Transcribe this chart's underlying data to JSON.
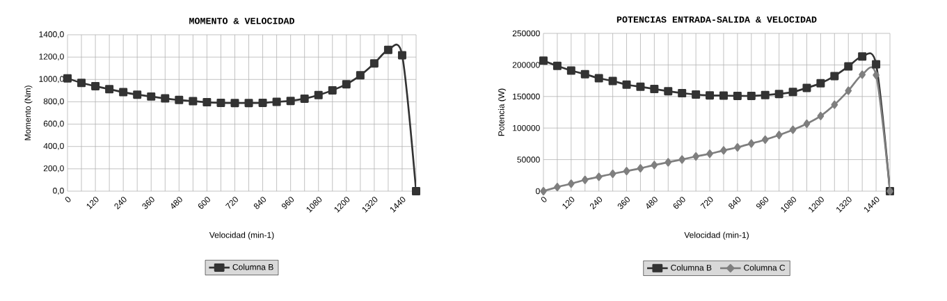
{
  "chart_data": [
    {
      "type": "line",
      "title": "MOMENTO & VELOCIDAD",
      "xlabel": "Velocidad (min-1)",
      "ylabel": "Momento (Nm)",
      "x": [
        0,
        60,
        120,
        180,
        240,
        300,
        360,
        420,
        480,
        540,
        600,
        660,
        720,
        780,
        840,
        900,
        960,
        1020,
        1080,
        1140,
        1200,
        1260,
        1320,
        1380,
        1440,
        1500
      ],
      "series": [
        {
          "name": "Columna B",
          "color": "#333333",
          "marker": "square",
          "values": [
            1010,
            969,
            940,
            913,
            886,
            864,
            847,
            830,
            816,
            806,
            796,
            791,
            789,
            789,
            791,
            799,
            808,
            828,
            860,
            903,
            957,
            1037,
            1144,
            1264,
            1217,
            0
          ]
        }
      ],
      "xlim": [
        0,
        1500
      ],
      "xticks": [
        0,
        {
          "value": 60,
          "label": null
        },
        120,
        {
          "value": 180,
          "label": null
        },
        240,
        {
          "value": 300,
          "label": null
        },
        360,
        {
          "value": 420,
          "label": null
        },
        480,
        {
          "value": 540,
          "label": null
        },
        600,
        {
          "value": 660,
          "label": null
        },
        720,
        {
          "value": 780,
          "label": null
        },
        840,
        {
          "value": 900,
          "label": null
        },
        960,
        {
          "value": 1020,
          "label": null
        },
        1080,
        {
          "value": 1140,
          "label": null
        },
        1200,
        {
          "value": 1260,
          "label": null
        },
        1320,
        {
          "value": 1380,
          "label": null
        },
        1440,
        {
          "value": 1500,
          "label": null
        }
      ],
      "ylim": [
        0,
        1400
      ],
      "yticks": [
        {
          "value": 0,
          "label": "0,0"
        },
        {
          "value": 200,
          "label": "200,0"
        },
        {
          "value": 400,
          "label": "400,0"
        },
        {
          "value": 600,
          "label": "600,0"
        },
        {
          "value": 800,
          "label": "800,0"
        },
        {
          "value": 1000,
          "label": "1000,0"
        },
        {
          "value": 1200,
          "label": "1200,0"
        },
        {
          "value": 1400,
          "label": "1400,0"
        }
      ],
      "grid": true,
      "legend": "bottom"
    },
    {
      "type": "line",
      "title": "POTENCIAS ENTRADA-SALIDA & VELOCIDAD",
      "xlabel": "Velocidad (min-1)",
      "ylabel": "Potencia (W)",
      "x": [
        0,
        60,
        120,
        180,
        240,
        300,
        360,
        420,
        480,
        540,
        600,
        660,
        720,
        780,
        840,
        900,
        960,
        1020,
        1080,
        1140,
        1200,
        1260,
        1320,
        1380,
        1440,
        1500
      ],
      "series": [
        {
          "name": "Columna B",
          "color": "#333333",
          "marker": "square",
          "values": [
            206800,
            198500,
            191100,
            185400,
            178900,
            174500,
            168800,
            165400,
            161900,
            158400,
            155300,
            153100,
            151800,
            151400,
            151000,
            151000,
            152300,
            154000,
            157100,
            163600,
            171000,
            182400,
            197600,
            213400,
            201100,
            0
          ]
        },
        {
          "name": "Columna C",
          "color": "#7f7f7f",
          "marker": "diamond",
          "values": [
            0,
            6500,
            11800,
            17900,
            22700,
            27500,
            31800,
            36200,
            41400,
            45800,
            50200,
            55000,
            59300,
            64600,
            69400,
            75500,
            81600,
            89000,
            97300,
            106900,
            119100,
            137000,
            159200,
            184600,
            184000,
            0
          ]
        }
      ],
      "xlim": [
        0,
        1500
      ],
      "xticks": [
        0,
        {
          "value": 60,
          "label": null
        },
        120,
        {
          "value": 180,
          "label": null
        },
        240,
        {
          "value": 300,
          "label": null
        },
        360,
        {
          "value": 420,
          "label": null
        },
        480,
        {
          "value": 540,
          "label": null
        },
        600,
        {
          "value": 660,
          "label": null
        },
        720,
        {
          "value": 780,
          "label": null
        },
        840,
        {
          "value": 900,
          "label": null
        },
        960,
        {
          "value": 1020,
          "label": null
        },
        1080,
        {
          "value": 1140,
          "label": null
        },
        1200,
        {
          "value": 1260,
          "label": null
        },
        1320,
        {
          "value": 1380,
          "label": null
        },
        1440,
        {
          "value": 1500,
          "label": null
        }
      ],
      "ylim": [
        0,
        250000
      ],
      "yticks": [
        0,
        50000,
        100000,
        150000,
        200000,
        250000
      ],
      "grid": true,
      "legend": "bottom"
    }
  ]
}
